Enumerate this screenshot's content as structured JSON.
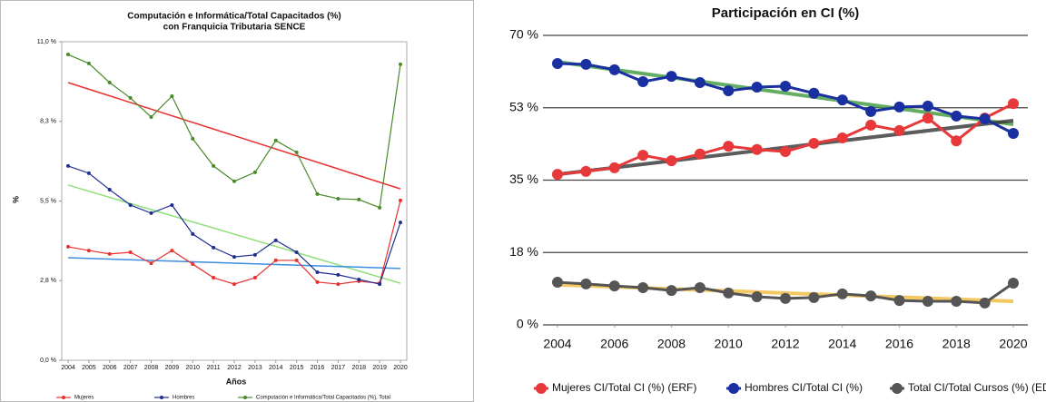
{
  "chart_data": [
    {
      "type": "line",
      "title": "Computación e Informática/Total Capacitados (%)",
      "subtitle": "con Franquicia Tributaria SENCE",
      "x_label": "Años",
      "y_label": "%",
      "x": [
        2004,
        2005,
        2006,
        2007,
        2008,
        2009,
        2010,
        2011,
        2012,
        2013,
        2014,
        2015,
        2016,
        2017,
        2018,
        2019,
        2020
      ],
      "xlim": [
        2004,
        2020
      ],
      "xticks": [
        2004,
        2005,
        2006,
        2007,
        2008,
        2009,
        2010,
        2011,
        2012,
        2013,
        2014,
        2015,
        2016,
        2017,
        2018,
        2019,
        2020
      ],
      "ylim": [
        0,
        11
      ],
      "yticks": [
        {
          "value": 0,
          "label": "0,0 %"
        },
        {
          "value": 2.75,
          "label": "2,8 %"
        },
        {
          "value": 5.5,
          "label": "5,5 %"
        },
        {
          "value": 8.25,
          "label": "8,3 %"
        },
        {
          "value": 11,
          "label": "11,0 %"
        }
      ],
      "grid": false,
      "series": [
        {
          "name": "Mujeres",
          "color": "#e8312f",
          "values": [
            3.92,
            3.79,
            3.67,
            3.73,
            3.35,
            3.79,
            3.32,
            2.85,
            2.63,
            2.85,
            3.45,
            3.45,
            2.7,
            2.63,
            2.73,
            2.66,
            5.52
          ]
        },
        {
          "name": "Hombres",
          "color": "#1f2f8f",
          "values": [
            6.71,
            6.46,
            5.89,
            5.36,
            5.08,
            5.36,
            4.36,
            3.89,
            3.57,
            3.64,
            4.14,
            3.73,
            3.04,
            2.95,
            2.79,
            2.63,
            4.76
          ]
        },
        {
          "name": "Computación e Informática/Total Capacitados (%), Total",
          "color": "#4a8a2a",
          "values": [
            10.56,
            10.25,
            9.59,
            9.06,
            8.4,
            9.12,
            7.65,
            6.71,
            6.18,
            6.49,
            7.59,
            7.18,
            5.74,
            5.58,
            5.55,
            5.27,
            10.22
          ]
        }
      ],
      "trendlines": [
        {
          "color": "#e8312f",
          "x": [
            2004,
            2020
          ],
          "values": [
            9.59,
            5.92
          ]
        },
        {
          "color": "#8fe07a",
          "x": [
            2004,
            2020
          ],
          "values": [
            6.05,
            2.66
          ]
        },
        {
          "color": "#3d8fe0",
          "x": [
            2004,
            2020
          ],
          "values": [
            3.54,
            3.17
          ]
        }
      ]
    },
    {
      "type": "line",
      "title": "Participación en CI (%)",
      "x": [
        2004,
        2005,
        2006,
        2007,
        2008,
        2009,
        2010,
        2011,
        2012,
        2013,
        2014,
        2015,
        2016,
        2017,
        2018,
        2019,
        2020
      ],
      "xlim": [
        2004,
        2020
      ],
      "xticks": [
        2004,
        2006,
        2008,
        2010,
        2012,
        2014,
        2016,
        2018,
        2020
      ],
      "ylim": [
        0,
        70
      ],
      "yticks": [
        {
          "value": 0,
          "label": "0 %"
        },
        {
          "value": 17.5,
          "label": "18 %"
        },
        {
          "value": 35,
          "label": "35 %"
        },
        {
          "value": 52.5,
          "label": "53 %"
        },
        {
          "value": 70,
          "label": "70 %"
        }
      ],
      "grid": true,
      "series": [
        {
          "name": "Mujeres CI/Total CI (%) (ERF)",
          "color": "#e8393a",
          "values": [
            36.4,
            37.1,
            38.0,
            41.0,
            39.7,
            41.3,
            43.2,
            42.4,
            41.9,
            43.9,
            45.2,
            48.3,
            47.0,
            50.0,
            44.5,
            50.0,
            53.5
          ]
        },
        {
          "name": "Hombres CI/Total CI (%)",
          "color": "#1a2fa0",
          "values": [
            63.2,
            63.0,
            61.7,
            58.8,
            60.1,
            58.6,
            56.6,
            57.5,
            57.7,
            56.0,
            54.4,
            51.6,
            52.7,
            52.9,
            50.5,
            49.8,
            46.3
          ]
        },
        {
          "name": "Total CI/Total Cursos (%) (ED)",
          "color": "#555555",
          "values": [
            10.3,
            9.9,
            9.4,
            9.0,
            8.3,
            9.0,
            7.7,
            6.8,
            6.4,
            6.6,
            7.5,
            7.0,
            5.9,
            5.7,
            5.7,
            5.3,
            10.1
          ]
        }
      ],
      "trendlines": [
        {
          "color": "#3c9a3c",
          "x": [
            2004,
            2020
          ],
          "values": [
            63.6,
            48.5
          ]
        },
        {
          "color": "#333333",
          "x": [
            2004,
            2020
          ],
          "values": [
            36.4,
            49.4
          ]
        },
        {
          "color": "#f0b93a",
          "x": [
            2004,
            2020
          ],
          "values": [
            9.7,
            5.7
          ]
        }
      ]
    }
  ]
}
